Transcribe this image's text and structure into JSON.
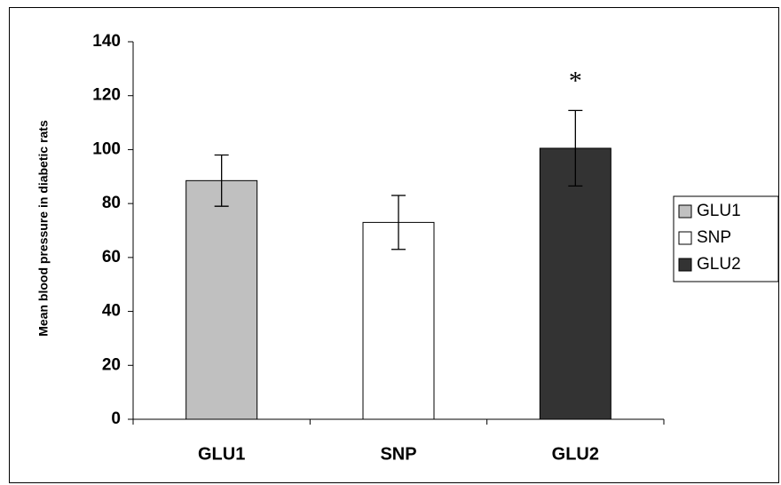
{
  "chart_data": {
    "type": "bar",
    "categories": [
      "GLU1",
      "SNP",
      "GLU2"
    ],
    "values": [
      88.5,
      73,
      100.5
    ],
    "errors": [
      9.5,
      10,
      14
    ],
    "colors": [
      "#c0c0c0",
      "#ffffff",
      "#333333"
    ],
    "ylabel": "Mean blood pressure in diabetic rats",
    "ylim": [
      0,
      140
    ],
    "yticks": [
      0,
      20,
      40,
      60,
      80,
      100,
      120,
      140
    ],
    "grid": false,
    "legend": {
      "placement": "right",
      "entries": [
        "GLU1",
        "SNP",
        "GLU2"
      ]
    },
    "annotations": [
      {
        "category": "GLU2",
        "text": "*"
      }
    ]
  }
}
